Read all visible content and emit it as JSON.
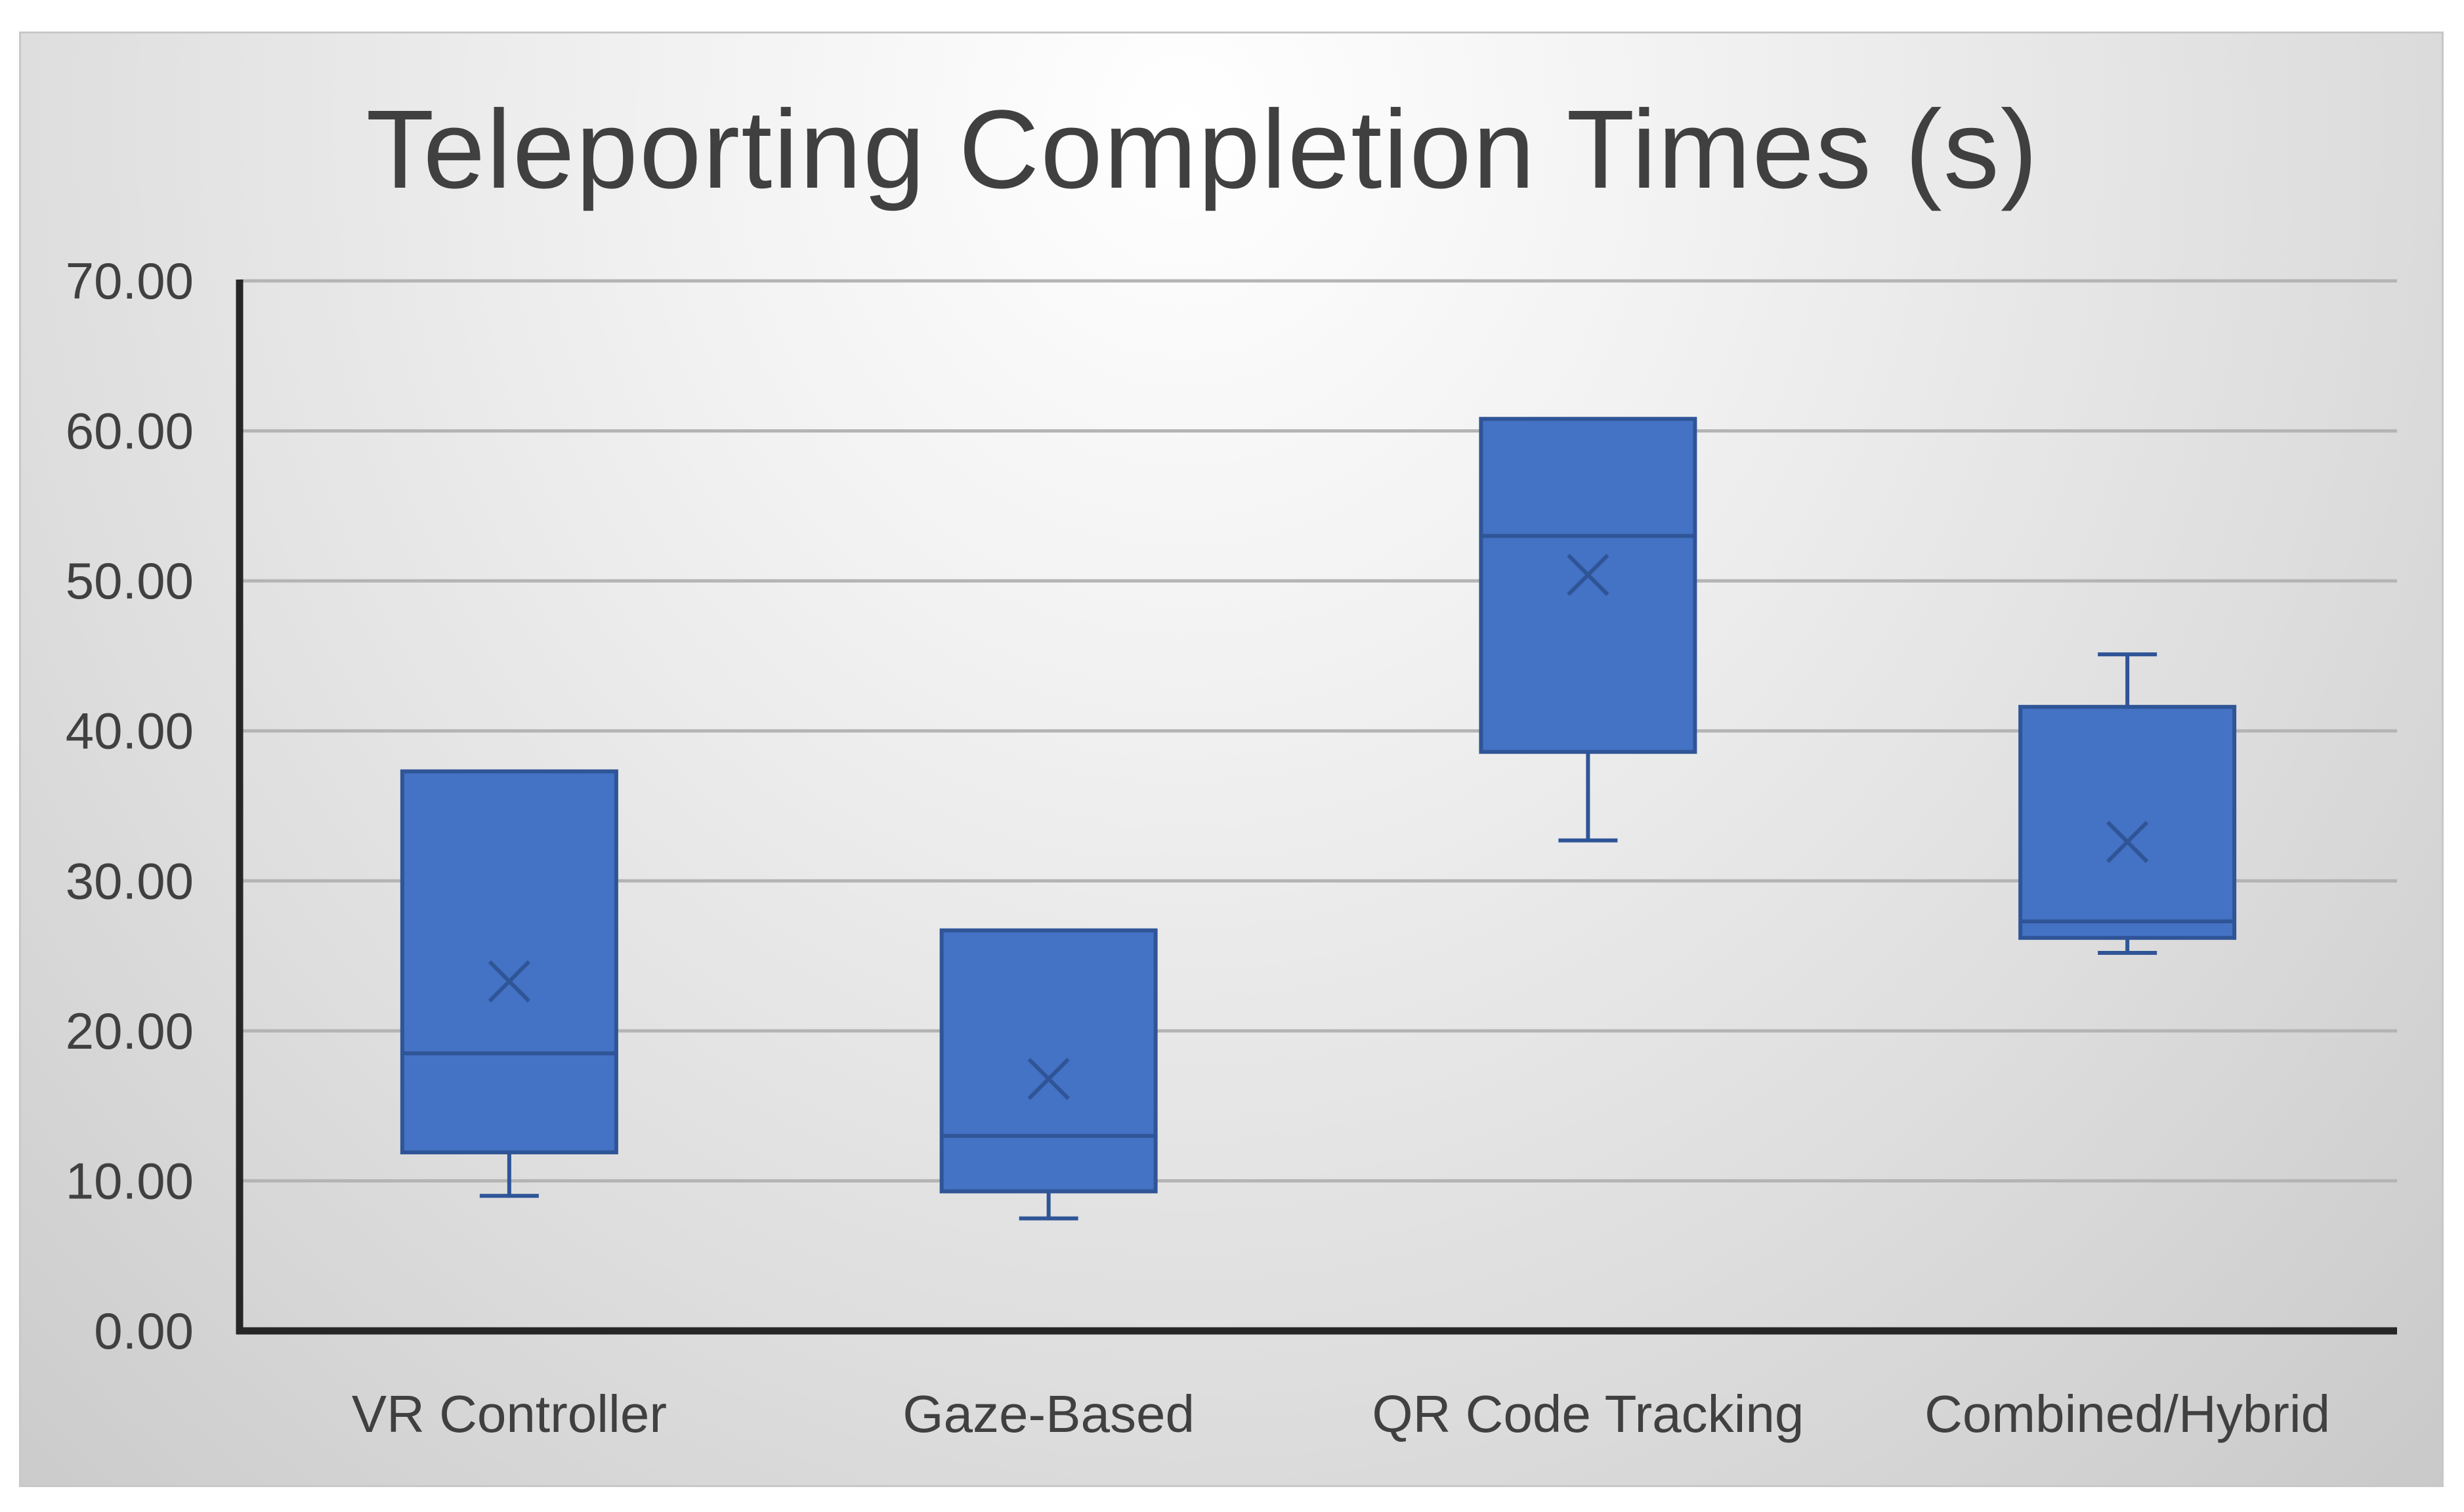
{
  "chart_data": {
    "type": "box",
    "title": "Teleporting Completion Times (s)",
    "xlabel": "",
    "ylabel": "",
    "ylim": [
      0,
      70
    ],
    "y_ticks": [
      "0.00",
      "10.00",
      "20.00",
      "30.00",
      "40.00",
      "50.00",
      "60.00",
      "70.00"
    ],
    "categories": [
      "VR Controller",
      "Gaze-Based",
      "QR Code Tracking",
      "Combined/Hybrid"
    ],
    "boxes": [
      {
        "category": "VR Controller",
        "min": 9.0,
        "q1": 11.9,
        "median": 18.5,
        "q3": 37.3,
        "max": 37.3,
        "mean": 23.3
      },
      {
        "category": "Gaze-Based",
        "min": 7.5,
        "q1": 9.3,
        "median": 13.0,
        "q3": 26.7,
        "max": 26.7,
        "mean": 16.8
      },
      {
        "category": "QR Code Tracking",
        "min": 32.7,
        "q1": 38.6,
        "median": 53.0,
        "q3": 60.8,
        "max": 60.8,
        "mean": 50.4
      },
      {
        "category": "Combined/Hybrid",
        "min": 25.2,
        "q1": 26.2,
        "median": 27.3,
        "q3": 41.6,
        "max": 45.1,
        "mean": 32.6
      }
    ],
    "grid": true,
    "legend": "none",
    "colors": {
      "box_fill": "#4472c4",
      "box_stroke": "#2f5597",
      "gridline": "#b4b4b4",
      "axis": "#262626",
      "text": "#404040"
    }
  }
}
